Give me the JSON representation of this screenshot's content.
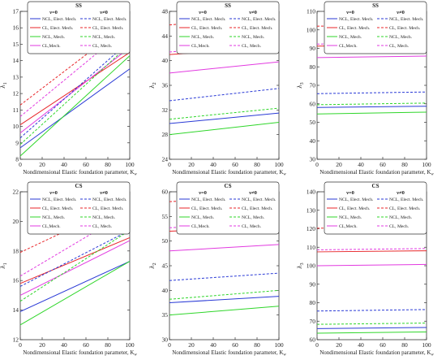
{
  "colors": {
    "NCL_elec": "#2a3ad6",
    "CL_elec": "#e8262a",
    "NCL_mech": "#2fd62a",
    "CL_mech": "#e23ae0"
  },
  "legend_headers": {
    "left": "ν=0",
    "right": "ν≠0"
  },
  "chart_data": [
    {
      "type": "line",
      "title": "SS",
      "xlabel": "Nondimensional Elastic foundation parameter, K",
      "xlabel_sub": "w",
      "ylabel": "λ",
      "ylabel_sub": "1",
      "xlim": [
        0,
        100
      ],
      "ylim": [
        8,
        17
      ],
      "xticks": [
        0,
        20,
        40,
        60,
        80,
        100
      ],
      "yticks": [
        8,
        9,
        10,
        11,
        12,
        13,
        14,
        15,
        16,
        17
      ],
      "x": [
        0,
        100
      ],
      "series": [
        {
          "name": "NCL, Elect. Mech.",
          "color_key": "NCL_elec",
          "dash": false,
          "values": [
            8.7,
            13.5
          ]
        },
        {
          "name": "CL, Elect. Mech.",
          "color_key": "CL_elec",
          "dash": false,
          "values": [
            10.1,
            14.5
          ]
        },
        {
          "name": "NCL, Mech.",
          "color_key": "NCL_mech",
          "dash": false,
          "values": [
            8.2,
            14.3
          ]
        },
        {
          "name": "CL,Mech.",
          "color_key": "CL_mech",
          "dash": false,
          "values": [
            9.6,
            14.8
          ]
        },
        {
          "name": "NCL, Elect. Mech.",
          "color_key": "NCL_elec",
          "dash": true,
          "values": [
            9.3,
            15.2
          ]
        },
        {
          "name": "CL, Elect. Mech.",
          "color_key": "CL_elec",
          "dash": true,
          "values": [
            11.3,
            16.4
          ]
        },
        {
          "name": "NCL, Mech.",
          "color_key": "NCL_mech",
          "dash": true,
          "values": [
            8.9,
            15.0
          ]
        },
        {
          "name": "CL, Mech.",
          "color_key": "CL_mech",
          "dash": true,
          "values": [
            10.6,
            16.1
          ]
        }
      ]
    },
    {
      "type": "line",
      "title": "SS",
      "xlabel": "Nondimensional Elastic foundation parameter, K",
      "xlabel_sub": "w",
      "ylabel": "λ",
      "ylabel_sub": "2",
      "xlim": [
        0,
        100
      ],
      "ylim": [
        24,
        48
      ],
      "xticks": [
        0,
        20,
        40,
        60,
        80,
        100
      ],
      "yticks": [
        24,
        28,
        32,
        36,
        40,
        44,
        48
      ],
      "x": [
        0,
        100
      ],
      "series": [
        {
          "name": "NCL, Elect. Mech.",
          "color_key": "NCL_elec",
          "dash": false,
          "values": [
            29.8,
            31.5
          ]
        },
        {
          "name": "CL, Elect. Mech.",
          "color_key": "CL_elec",
          "dash": false,
          "values": [
            41.0,
            42.2
          ]
        },
        {
          "name": "NCL, Mech.",
          "color_key": "NCL_mech",
          "dash": false,
          "values": [
            28.0,
            30.0
          ]
        },
        {
          "name": "CL,Mech.",
          "color_key": "CL_mech",
          "dash": false,
          "values": [
            38.0,
            39.8
          ]
        },
        {
          "name": "NCL, Elect. Mech.",
          "color_key": "NCL_elec",
          "dash": true,
          "values": [
            33.5,
            35.5
          ]
        },
        {
          "name": "CL, Elect. Mech.",
          "color_key": "CL_elec",
          "dash": true,
          "values": [
            45.8,
            47.2
          ]
        },
        {
          "name": "NCL, Mech.",
          "color_key": "NCL_mech",
          "dash": true,
          "values": [
            30.5,
            32.3
          ]
        },
        {
          "name": "CL, Mech.",
          "color_key": "CL_mech",
          "dash": true,
          "values": [
            41.4,
            43.0
          ]
        }
      ]
    },
    {
      "type": "line",
      "title": "SS",
      "xlabel": "Nondimensional Elastic foundation parameter, K",
      "xlabel_sub": "w",
      "ylabel": "λ",
      "ylabel_sub": "3",
      "xlim": [
        0,
        100
      ],
      "ylim": [
        30,
        110
      ],
      "xticks": [
        0,
        20,
        40,
        60,
        80,
        100
      ],
      "yticks": [
        30,
        40,
        50,
        60,
        70,
        80,
        90,
        100,
        110
      ],
      "x": [
        0,
        100
      ],
      "series": [
        {
          "name": "NCL, Elect. Mech.",
          "color_key": "NCL_elec",
          "dash": false,
          "values": [
            58.0,
            58.7
          ]
        },
        {
          "name": "CL, Elect. Mech.",
          "color_key": "CL_elec",
          "dash": false,
          "values": [
            91.2,
            91.8
          ]
        },
        {
          "name": "NCL, Mech.",
          "color_key": "NCL_mech",
          "dash": false,
          "values": [
            54.5,
            55.5
          ]
        },
        {
          "name": "CL,Mech.",
          "color_key": "CL_mech",
          "dash": false,
          "values": [
            85.0,
            85.8
          ]
        },
        {
          "name": "NCL, Elect. Mech.",
          "color_key": "NCL_elec",
          "dash": true,
          "values": [
            65.5,
            66.4
          ]
        },
        {
          "name": "CL, Elect. Mech.",
          "color_key": "CL_elec",
          "dash": true,
          "values": [
            102.0,
            102.7
          ]
        },
        {
          "name": "NCL, Mech.",
          "color_key": "NCL_mech",
          "dash": true,
          "values": [
            59.5,
            60.4
          ]
        },
        {
          "name": "CL, Mech.",
          "color_key": "CL_mech",
          "dash": true,
          "values": [
            92.3,
            93.0
          ]
        }
      ]
    },
    {
      "type": "line",
      "title": "CS",
      "xlabel": "Nondimensional Elastic foundation parameter, K",
      "xlabel_sub": "w",
      "ylabel": "λ",
      "ylabel_sub": "1",
      "xlim": [
        0,
        100
      ],
      "ylim": [
        12,
        22
      ],
      "xticks": [
        0,
        20,
        40,
        60,
        80,
        100
      ],
      "yticks": [
        12,
        14,
        16,
        18,
        20,
        22
      ],
      "x": [
        0,
        100
      ],
      "series": [
        {
          "name": "NCL, Elect. Mech.",
          "color_key": "NCL_elec",
          "dash": false,
          "values": [
            13.9,
            17.3
          ]
        },
        {
          "name": "CL, Elect. Mech.",
          "color_key": "CL_elec",
          "dash": false,
          "values": [
            15.8,
            18.9
          ]
        },
        {
          "name": "NCL, Mech.",
          "color_key": "NCL_mech",
          "dash": false,
          "values": [
            13.0,
            17.3
          ]
        },
        {
          "name": "CL,Mech.",
          "color_key": "CL_mech",
          "dash": false,
          "values": [
            15.0,
            18.7
          ]
        },
        {
          "name": "NCL, Elect. Mech.",
          "color_key": "NCL_elec",
          "dash": true,
          "values": [
            15.6,
            19.4
          ]
        },
        {
          "name": "CL, Elect. Mech.",
          "color_key": "CL_elec",
          "dash": true,
          "values": [
            17.9,
            21.4
          ]
        },
        {
          "name": "NCL, Mech.",
          "color_key": "NCL_mech",
          "dash": true,
          "values": [
            14.6,
            19.4
          ]
        },
        {
          "name": "CL, Mech.",
          "color_key": "CL_mech",
          "dash": true,
          "values": [
            16.3,
            20.7
          ]
        }
      ]
    },
    {
      "type": "line",
      "title": "CS",
      "xlabel": "Nondimensional Elastic foundation parameter, K",
      "xlabel_sub": "w",
      "ylabel": "λ",
      "ylabel_sub": "2",
      "xlim": [
        0,
        100
      ],
      "ylim": [
        30,
        60
      ],
      "xticks": [
        0,
        20,
        40,
        60,
        80,
        100
      ],
      "yticks": [
        30,
        35,
        40,
        45,
        50,
        55,
        60
      ],
      "x": [
        0,
        100
      ],
      "series": [
        {
          "name": "NCL, Elect. Mech.",
          "color_key": "NCL_elec",
          "dash": false,
          "values": [
            37.5,
            38.8
          ]
        },
        {
          "name": "CL, Elect. Mech.",
          "color_key": "CL_elec",
          "dash": false,
          "values": [
            52.0,
            52.8
          ]
        },
        {
          "name": "NCL, Mech.",
          "color_key": "NCL_mech",
          "dash": false,
          "values": [
            35.0,
            36.8
          ]
        },
        {
          "name": "CL,Mech.",
          "color_key": "CL_mech",
          "dash": false,
          "values": [
            48.0,
            49.3
          ]
        },
        {
          "name": "NCL, Elect. Mech.",
          "color_key": "NCL_elec",
          "dash": true,
          "values": [
            42.0,
            43.5
          ]
        },
        {
          "name": "CL, Elect. Mech.",
          "color_key": "CL_elec",
          "dash": true,
          "values": [
            58.0,
            59.0
          ]
        },
        {
          "name": "NCL, Mech.",
          "color_key": "NCL_mech",
          "dash": true,
          "values": [
            38.2,
            40.0
          ]
        },
        {
          "name": "CL, Mech.",
          "color_key": "CL_mech",
          "dash": true,
          "values": [
            52.7,
            53.8
          ]
        }
      ]
    },
    {
      "type": "line",
      "title": "CS",
      "xlabel": "Nondimensional Elastic foundation parameter, K",
      "xlabel_sub": "w",
      "ylabel": "λ",
      "ylabel_sub": "3",
      "xlim": [
        0,
        100
      ],
      "ylim": [
        60,
        140
      ],
      "xticks": [
        0,
        20,
        40,
        60,
        80,
        100
      ],
      "yticks": [
        60,
        70,
        80,
        90,
        100,
        110,
        120,
        130,
        140
      ],
      "x": [
        0,
        100
      ],
      "series": [
        {
          "name": "NCL, Elect. Mech.",
          "color_key": "NCL_elec",
          "dash": false,
          "values": [
            66.0,
            66.6
          ]
        },
        {
          "name": "CL, Elect. Mech.",
          "color_key": "CL_elec",
          "dash": false,
          "values": [
            107.5,
            108.1
          ]
        },
        {
          "name": "NCL, Mech.",
          "color_key": "NCL_mech",
          "dash": false,
          "values": [
            63.5,
            64.2
          ]
        },
        {
          "name": "CL,Mech.",
          "color_key": "CL_mech",
          "dash": false,
          "values": [
            100.0,
            100.7
          ]
        },
        {
          "name": "NCL, Elect. Mech.",
          "color_key": "NCL_elec",
          "dash": true,
          "values": [
            75.5,
            76.3
          ]
        },
        {
          "name": "CL, Elect. Mech.",
          "color_key": "CL_elec",
          "dash": true,
          "values": [
            120.3,
            121.0
          ]
        },
        {
          "name": "NCL, Mech.",
          "color_key": "NCL_mech",
          "dash": true,
          "values": [
            68.3,
            69.0
          ]
        },
        {
          "name": "CL, Mech.",
          "color_key": "CL_mech",
          "dash": true,
          "values": [
            108.6,
            109.3
          ]
        }
      ]
    }
  ]
}
